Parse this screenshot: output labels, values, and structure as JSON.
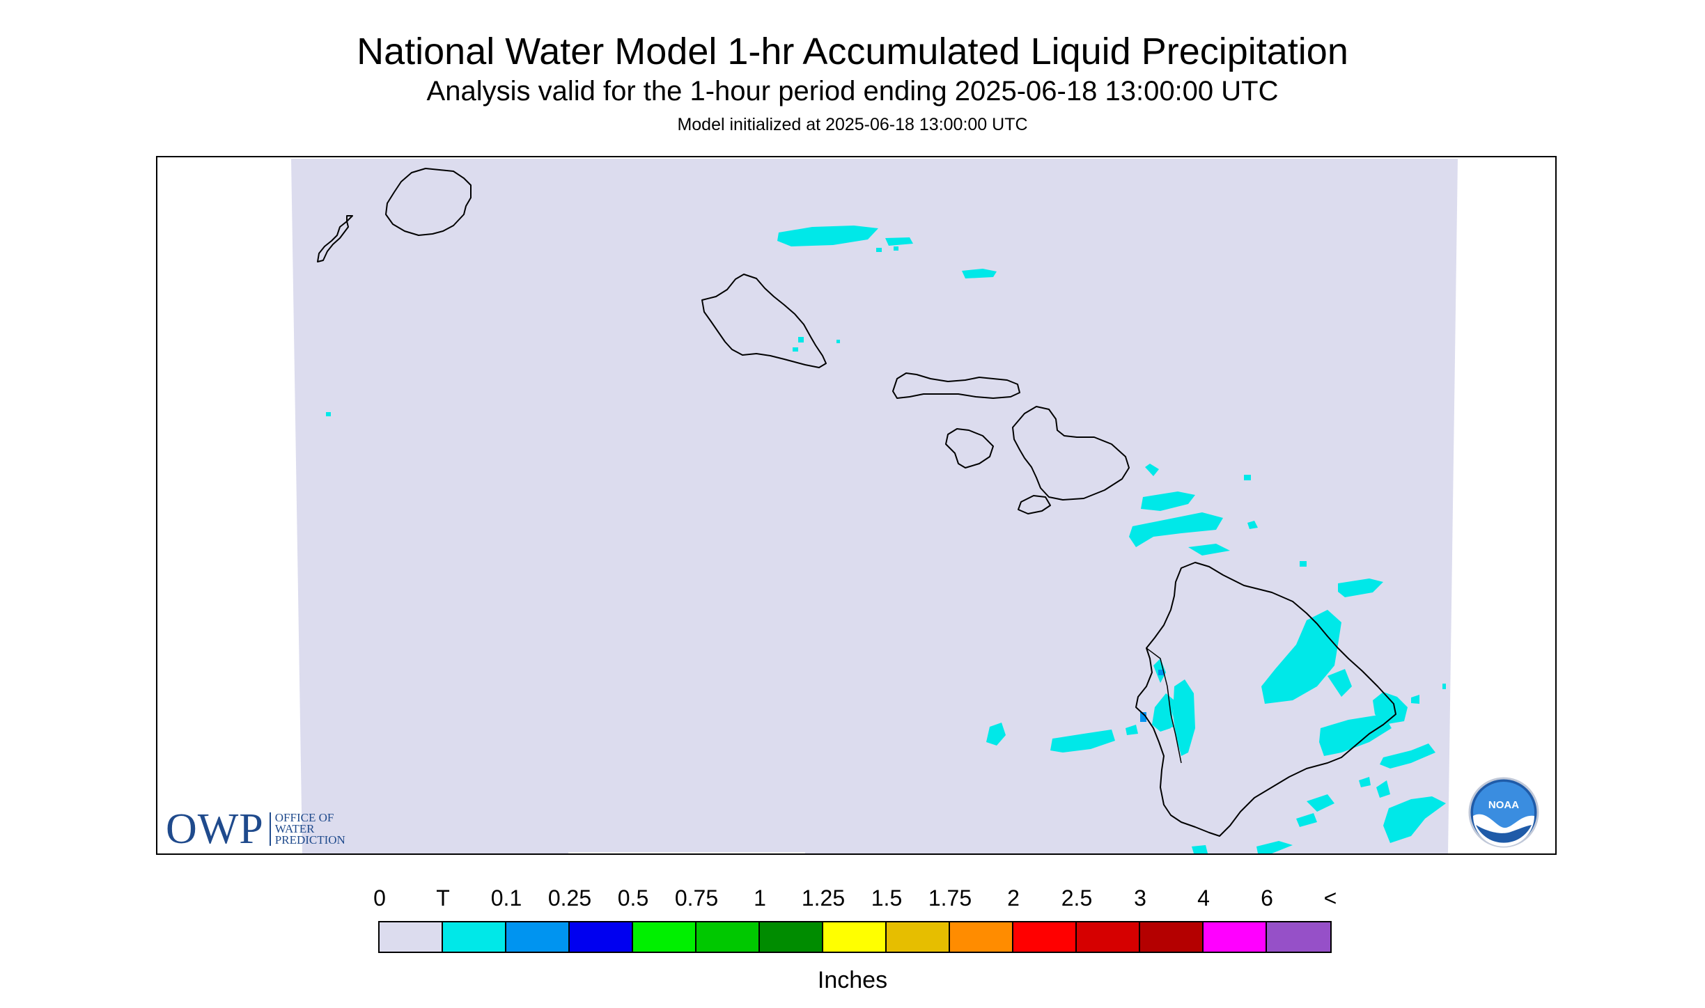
{
  "title": "National Water Model 1-hr Accumulated Liquid Precipitation",
  "subtitle": "Analysis valid for the 1-hour period ending 2025-06-18 13:00:00 UTC",
  "init_line": "Model initialized at 2025-06-18 13:00:00 UTC",
  "map": {
    "region": "Hawaii",
    "islands": [
      "Niihau",
      "Kauai",
      "Oahu",
      "Molokai",
      "Lanai",
      "Maui",
      "Kahoolawe",
      "Hawaii"
    ],
    "background_color": "#dcdcee",
    "coastline_color": "#000000",
    "precip_color_visible": "#00e8e8",
    "precip_heavier_color_visible": "#0090f0"
  },
  "owp_logo": {
    "letters": "OWP",
    "line1": "OFFICE OF",
    "line2": "WATER",
    "line3": "PREDICTION"
  },
  "noaa_logo": {
    "text": "NOAA"
  },
  "legend": {
    "units": "Inches",
    "labels": [
      "0",
      "T",
      "0.1",
      "0.25",
      "0.5",
      "0.75",
      "1",
      "1.25",
      "1.5",
      "1.75",
      "2",
      "2.5",
      "3",
      "4",
      "6",
      "<"
    ],
    "colors": [
      "#dcdcee",
      "#00e8e8",
      "#0094f0",
      "#0000f0",
      "#00f000",
      "#00c800",
      "#008c00",
      "#ffff00",
      "#e6be00",
      "#ff8c00",
      "#ff0000",
      "#d60000",
      "#b40000",
      "#ff00ff",
      "#9650c8"
    ]
  }
}
